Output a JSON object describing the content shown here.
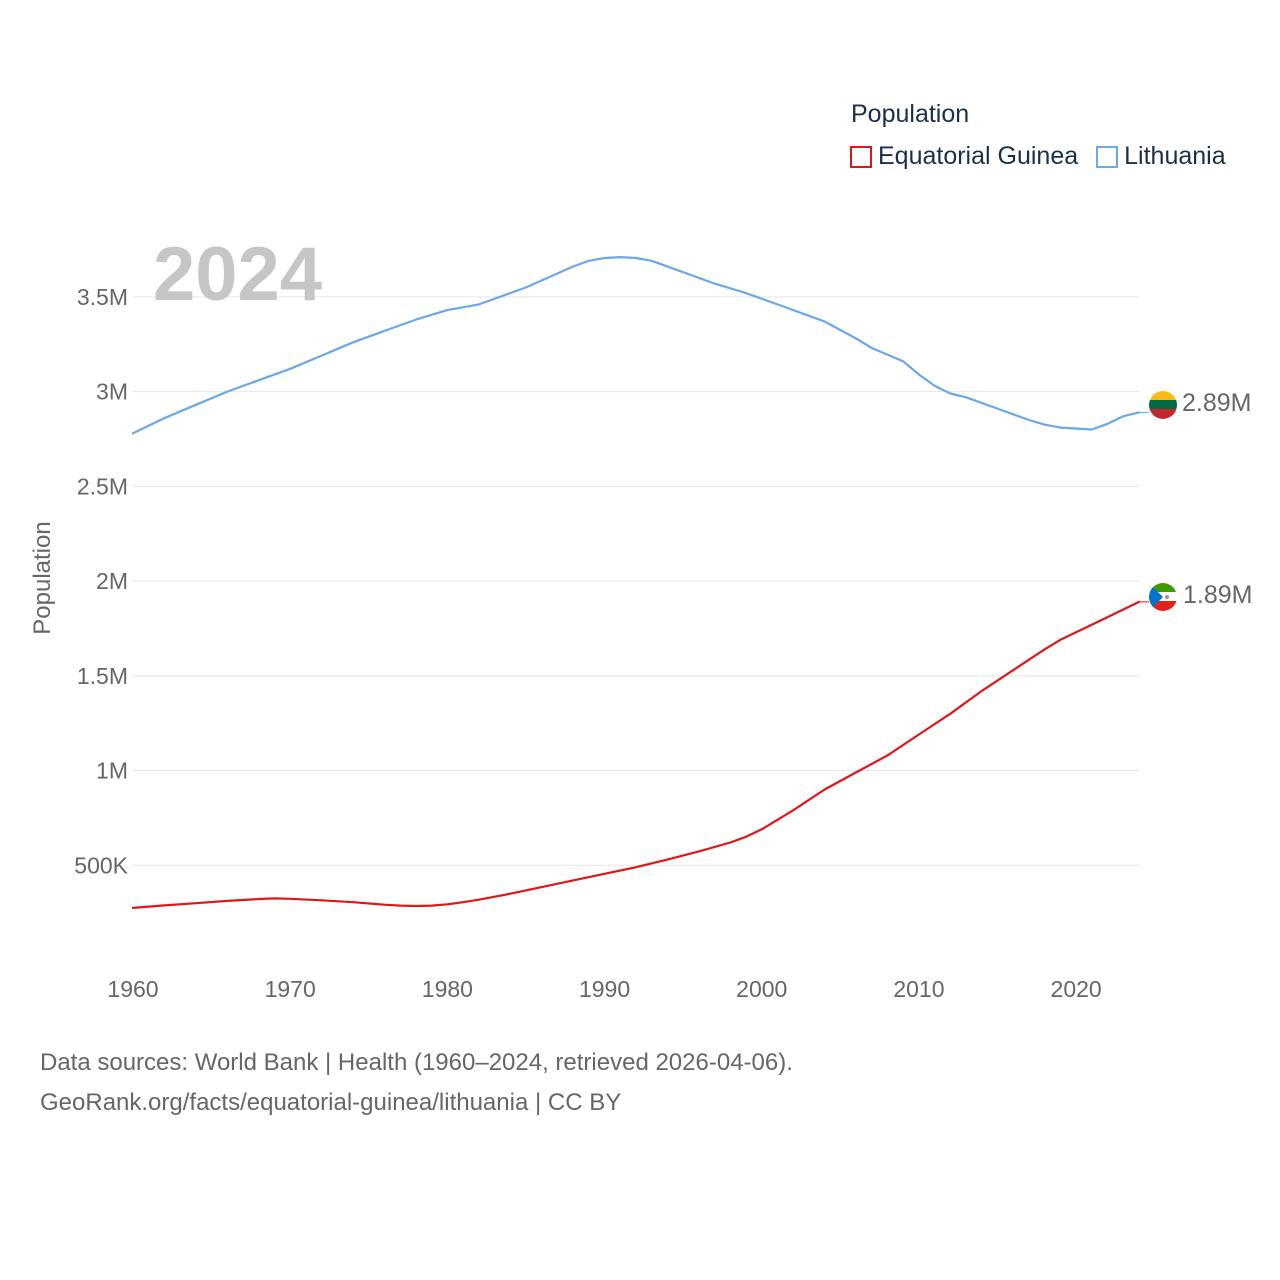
{
  "legend": {
    "title": "Population",
    "items": [
      {
        "label": "Equatorial Guinea",
        "color": "#e0161a"
      },
      {
        "label": "Lithuania",
        "color": "#6aa8e6"
      }
    ]
  },
  "source": {
    "line1": "Data sources: World Bank | Health (1960–2024, retrieved 2026-04-06).",
    "line2": "GeoRank.org/facts/equatorial-guinea/lithuania | CC BY"
  },
  "chart_data": {
    "type": "line",
    "title": "Population",
    "year_label": "2024",
    "xlabel": "",
    "ylabel": "Population",
    "xlim": [
      1960,
      2024
    ],
    "ylim": [
      0,
      3800000
    ],
    "grid": true,
    "x_ticks": [
      1960,
      1970,
      1980,
      1990,
      2000,
      2010,
      2020
    ],
    "y_ticks": [
      {
        "value": 500000,
        "label": "500K"
      },
      {
        "value": 1000000,
        "label": "1M"
      },
      {
        "value": 1500000,
        "label": "1.5M"
      },
      {
        "value": 2000000,
        "label": "2M"
      },
      {
        "value": 2500000,
        "label": "2.5M"
      },
      {
        "value": 3000000,
        "label": "3M"
      },
      {
        "value": 3500000,
        "label": "3.5M"
      }
    ],
    "series": [
      {
        "name": "Lithuania",
        "color": "#6aa8e6",
        "end_label": "2.89M",
        "flag": "lithuania",
        "x": [
          1960,
          1962,
          1964,
          1966,
          1968,
          1970,
          1972,
          1974,
          1976,
          1978,
          1980,
          1982,
          1985,
          1988,
          1989,
          1990,
          1991,
          1992,
          1993,
          1995,
          1997,
          1999,
          2001,
          2003,
          2004,
          2006,
          2007,
          2009,
          2010,
          2011,
          2012,
          2013,
          2015,
          2017,
          2018,
          2019,
          2021,
          2022,
          2023,
          2024
        ],
        "values": [
          2780000,
          2860000,
          2930000,
          3000000,
          3060000,
          3120000,
          3190000,
          3260000,
          3320000,
          3380000,
          3430000,
          3460000,
          3550000,
          3660000,
          3690000,
          3705000,
          3710000,
          3705000,
          3690000,
          3630000,
          3570000,
          3520000,
          3460000,
          3400000,
          3370000,
          3280000,
          3230000,
          3160000,
          3090000,
          3030000,
          2990000,
          2970000,
          2910000,
          2850000,
          2825000,
          2810000,
          2800000,
          2830000,
          2870000,
          2890000
        ]
      },
      {
        "name": "Equatorial Guinea",
        "color": "#e0161a",
        "end_label": "1.89M",
        "flag": "equatorial-guinea",
        "x": [
          1960,
          1962,
          1964,
          1966,
          1968,
          1969,
          1970,
          1972,
          1974,
          1976,
          1977,
          1978,
          1979,
          1980,
          1981,
          1982,
          1984,
          1986,
          1988,
          1990,
          1992,
          1994,
          1996,
          1998,
          1999,
          2000,
          2002,
          2004,
          2006,
          2008,
          2010,
          2012,
          2014,
          2016,
          2018,
          2019,
          2020,
          2022,
          2024
        ],
        "values": [
          275000,
          288000,
          300000,
          312000,
          322000,
          325000,
          323000,
          315000,
          305000,
          292000,
          287000,
          285000,
          287000,
          294000,
          305000,
          318000,
          350000,
          385000,
          420000,
          455000,
          490000,
          530000,
          573000,
          620000,
          650000,
          690000,
          790000,
          900000,
          990000,
          1080000,
          1190000,
          1300000,
          1420000,
          1530000,
          1640000,
          1690000,
          1730000,
          1810000,
          1890000
        ]
      }
    ]
  }
}
